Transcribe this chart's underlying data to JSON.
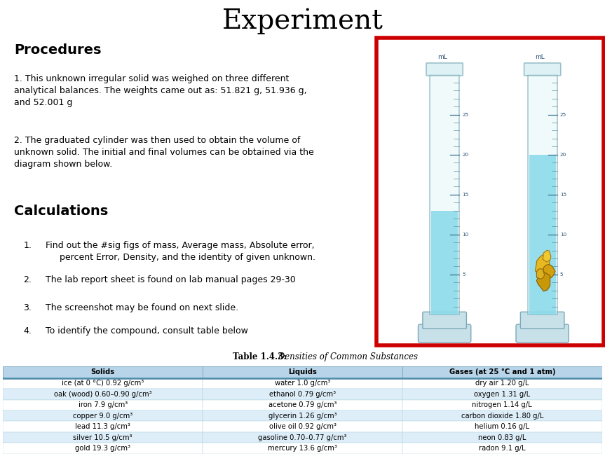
{
  "title": "Experiment",
  "title_fontsize": 28,
  "header_bg": "#bebebe",
  "procedures_bg": "#daeef3",
  "calculations_bg": "#fce4d0",
  "image_bg": "#cddce8",
  "procedures_title": "Procedures",
  "procedures_text1": "1. This unknown irregular solid was weighed on three different\nanalytical balances. The weights came out as: 51.821 g, 51.936 g,\nand 52.001 g",
  "procedures_text2": "2. The graduated cylinder was then used to obtain the volume of\nunknown solid. The initial and final volumes can be obtained via the\ndiagram shown below.",
  "calculations_title": "Calculations",
  "calculations_items": [
    "Find out the #sig figs of mass, Average mass, Absolute error,\n     percent Error, Density, and the identity of given unknown.",
    "The lab report sheet is found on lab manual pages 29-30",
    "The screenshot may be found on next slide.",
    "To identify the compound, consult table below"
  ],
  "table_title_bold": "Table 1.4.3:",
  "table_title_italic": " Densities of Common Substances",
  "table_headers": [
    "Solids",
    "Liquids",
    "Gases (at 25 °C and 1 atm)"
  ],
  "table_header_bg": "#b8d4e8",
  "table_col1": [
    "ice (at 0 °C) 0.92 g/cm³",
    "oak (wood) 0.60–0.90 g/cm³",
    "iron 7.9 g/cm³",
    "copper 9.0 g/cm³",
    "lead 11.3 g/cm³",
    "silver 10.5 g/cm³",
    "gold 19.3 g/cm³"
  ],
  "table_col2": [
    "water 1.0 g/cm³",
    "ethanol 0.79 g/cm³",
    "acetone 0.79 g/cm³",
    "glycerin 1.26 g/cm³",
    "olive oil 0.92 g/cm³",
    "gasoline 0.70–0.77 g/cm³",
    "mercury 13.6 g/cm³"
  ],
  "table_col3": [
    "dry air 1.20 g/L",
    "oxygen 1.31 g/L",
    "nitrogen 1.14 g/L",
    "carbon dioxide 1.80 g/L",
    "helium 0.16 g/L",
    "neon 0.83 g/L",
    "radon 9.1 g/L"
  ],
  "table_row_bg_alt": "#ddeef8",
  "table_row_bg_white": "#ffffff",
  "table_font_size": 7.2,
  "body_font_size": 9.0,
  "title_font_size": 14
}
